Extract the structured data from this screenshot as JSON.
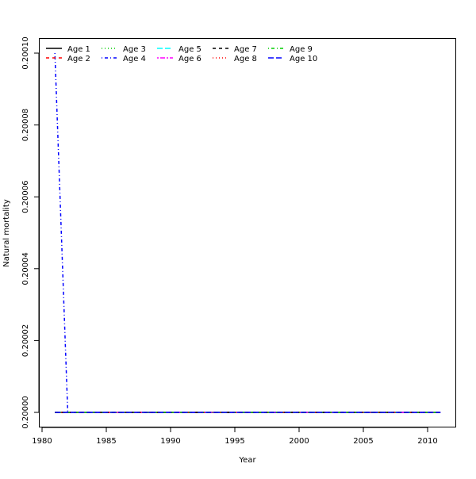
{
  "chart_data": {
    "type": "line",
    "title": "",
    "xlabel": "Year",
    "ylabel": "Natural mortality",
    "xlim": [
      1980,
      2012
    ],
    "ylim": [
      0.199995,
      0.200105
    ],
    "xticks": [
      1980,
      1985,
      1990,
      1995,
      2000,
      2005,
      2010
    ],
    "yticks": [
      "0.20000",
      "0.20002",
      "0.20004",
      "0.20006",
      "0.20008",
      "0.20010"
    ],
    "ytick_values": [
      0.2,
      0.20002,
      0.20004,
      0.20006,
      0.20008,
      0.2001
    ],
    "grid": false,
    "legend_position": "top-left",
    "x": [
      1981,
      1982,
      1983,
      1984,
      1985,
      1986,
      1987,
      1988,
      1989,
      1990,
      1991,
      1992,
      1993,
      1994,
      1995,
      1996,
      1997,
      1998,
      1999,
      2000,
      2001,
      2002,
      2003,
      2004,
      2005,
      2006,
      2007,
      2008,
      2009,
      2010,
      2011
    ],
    "series": [
      {
        "name": "Age 1",
        "color": "#000000",
        "dash": "solid",
        "values": "constant",
        "constant": 0.2
      },
      {
        "name": "Age 2",
        "color": "#ff0000",
        "dash": "dashed",
        "constant": 0.2
      },
      {
        "name": "Age 3",
        "color": "#00cd00",
        "dash": "dotted",
        "constant": 0.2
      },
      {
        "name": "Age 4",
        "color": "#0000ff",
        "dash": "dotdash",
        "constant": 0.2,
        "overrides": {
          "1981": 0.2001
        }
      },
      {
        "name": "Age 5",
        "color": "#00ffff",
        "dash": "longdash",
        "constant": 0.2
      },
      {
        "name": "Age 6",
        "color": "#ff00ff",
        "dash": "twodash",
        "constant": 0.2
      },
      {
        "name": "Age 7",
        "color": "#000000",
        "dash": "dashed",
        "constant": 0.2
      },
      {
        "name": "Age 8",
        "color": "#ff0000",
        "dash": "dotted",
        "constant": 0.2
      },
      {
        "name": "Age 9",
        "color": "#00cd00",
        "dash": "dotdash",
        "constant": 0.2
      },
      {
        "name": "Age 10",
        "color": "#0000ff",
        "dash": "longdash",
        "constant": 0.2
      }
    ]
  }
}
